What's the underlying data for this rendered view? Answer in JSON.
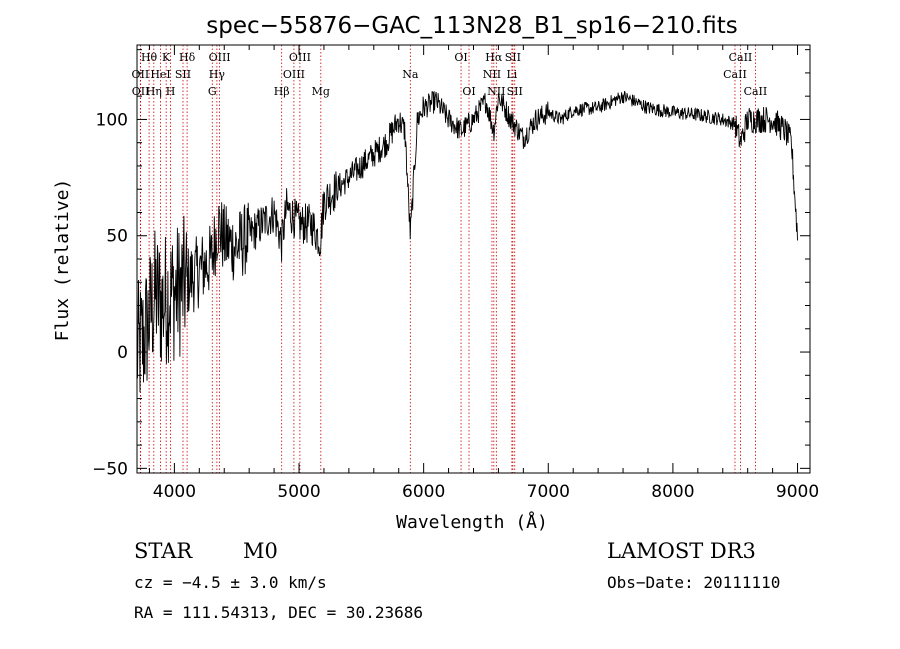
{
  "chart_data": {
    "type": "line",
    "title": "spec−55876−GAC_113N28_B1_sp16−210.fits",
    "xlabel": "Wavelength (Å)",
    "ylabel": "Flux (relative)",
    "xlim": [
      3700,
      9100
    ],
    "ylim": [
      -52,
      132
    ],
    "xticks": [
      4000,
      5000,
      6000,
      7000,
      8000,
      9000
    ],
    "yticks": [
      -50,
      0,
      50,
      100
    ],
    "xtick_labels": [
      "4000",
      "5000",
      "6000",
      "7000",
      "8000",
      "9000"
    ],
    "ytick_labels": [
      "−50",
      "0",
      "50",
      "100"
    ],
    "series": [
      {
        "name": "flux",
        "x": [
          3700,
          3750,
          3800,
          3850,
          3900,
          3950,
          4000,
          4100,
          4200,
          4300,
          4350,
          4400,
          4500,
          4600,
          4700,
          4800,
          4860,
          4900,
          5000,
          5100,
          5170,
          5200,
          5300,
          5400,
          5500,
          5600,
          5700,
          5800,
          5850,
          5893,
          5950,
          6000,
          6100,
          6200,
          6300,
          6400,
          6500,
          6563,
          6600,
          6700,
          6800,
          6900,
          7000,
          7100,
          7200,
          7400,
          7600,
          7800,
          8000,
          8200,
          8400,
          8500,
          8542,
          8600,
          8700,
          8800,
          8900,
          8950,
          9000
        ],
        "y": [
          0,
          5,
          15,
          25,
          20,
          25,
          25,
          30,
          35,
          40,
          55,
          48,
          45,
          50,
          55,
          60,
          47,
          62,
          55,
          55,
          48,
          65,
          70,
          75,
          80,
          85,
          90,
          100,
          95,
          50,
          100,
          105,
          108,
          100,
          95,
          100,
          108,
          95,
          110,
          100,
          92,
          100,
          103,
          100,
          104,
          105,
          110,
          105,
          103,
          102,
          100,
          98,
          90,
          100,
          100,
          100,
          95,
          90,
          50
        ]
      }
    ],
    "spectral_lines": [
      {
        "label": "Hθ",
        "wavelength": 3797,
        "row": 0
      },
      {
        "label": "OII",
        "wavelength": 3727,
        "row": 1
      },
      {
        "label": "OII",
        "wavelength": 3729,
        "row": 2
      },
      {
        "label": "HeI",
        "wavelength": 3889,
        "row": 1
      },
      {
        "label": "Hη",
        "wavelength": 3835,
        "row": 2
      },
      {
        "label": "K",
        "wavelength": 3934,
        "row": 0
      },
      {
        "label": "H",
        "wavelength": 3969,
        "row": 2
      },
      {
        "label": "Hδ",
        "wavelength": 4102,
        "row": 0
      },
      {
        "label": "SII",
        "wavelength": 4069,
        "row": 1
      },
      {
        "label": "OIII",
        "wavelength": 4363,
        "row": 0
      },
      {
        "label": "Hγ",
        "wavelength": 4341,
        "row": 1
      },
      {
        "label": "G",
        "wavelength": 4304,
        "row": 2
      },
      {
        "label": "OIII",
        "wavelength": 5007,
        "row": 0
      },
      {
        "label": "OIII",
        "wavelength": 4959,
        "row": 1
      },
      {
        "label": "Hβ",
        "wavelength": 4861,
        "row": 2
      },
      {
        "label": "Mg",
        "wavelength": 5175,
        "row": 2
      },
      {
        "label": "Na",
        "wavelength": 5893,
        "row": 1
      },
      {
        "label": "OI",
        "wavelength": 6300,
        "row": 0
      },
      {
        "label": "OI",
        "wavelength": 6364,
        "row": 2
      },
      {
        "label": "Hα",
        "wavelength": 6563,
        "row": 0
      },
      {
        "label": "NII",
        "wavelength": 6548,
        "row": 1
      },
      {
        "label": "NII",
        "wavelength": 6583,
        "row": 2
      },
      {
        "label": "SII",
        "wavelength": 6716,
        "row": 0
      },
      {
        "label": "Li",
        "wavelength": 6708,
        "row": 1
      },
      {
        "label": "SII",
        "wavelength": 6731,
        "row": 2
      },
      {
        "label": "CaII",
        "wavelength": 8542,
        "row": 0
      },
      {
        "label": "CaII",
        "wavelength": 8498,
        "row": 1
      },
      {
        "label": "CaII",
        "wavelength": 8662,
        "row": 2
      }
    ],
    "colors": {
      "spectrum": "#000000",
      "line_markers": "#cc0000",
      "axes": "#000000"
    }
  },
  "info": {
    "class": "STAR",
    "subclass": "M0",
    "survey": "LAMOST DR3",
    "cz": "cz = −4.5 ± 3.0 km/s",
    "obs_date": "Obs−Date: 20111110",
    "radec": "RA = 111.54313, DEC =  30.23686"
  }
}
